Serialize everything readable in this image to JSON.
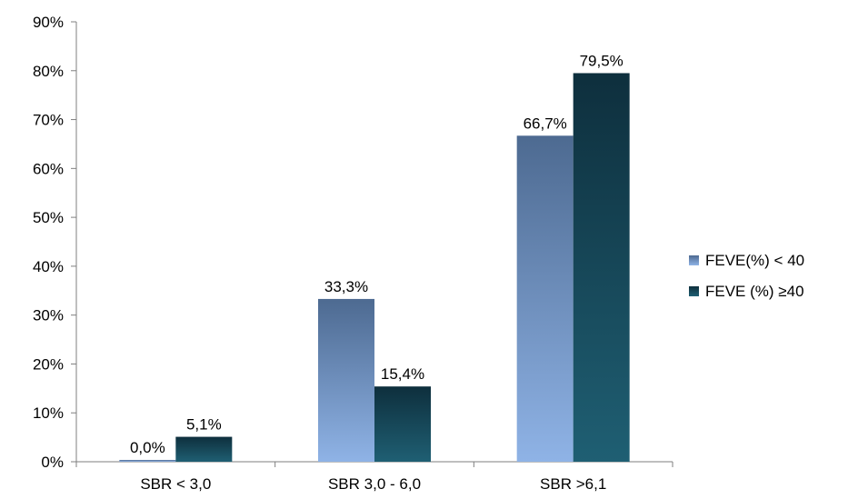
{
  "chart_data": {
    "type": "bar",
    "title": "",
    "xlabel": "",
    "ylabel": "",
    "categories": [
      "SBR < 3,0",
      "SBR 3,0 - 6,0",
      "SBR >6,1"
    ],
    "series": [
      {
        "name": "FEVE(%) < 40",
        "values": [
          0.0,
          33.3,
          66.7
        ],
        "labels": [
          "0,0%",
          "33,3%",
          "66,7%"
        ],
        "color_top": "#4d6a91",
        "color_bottom": "#8fb3e6"
      },
      {
        "name": "FEVE (%) ≥40",
        "values": [
          5.1,
          15.4,
          79.5
        ],
        "labels": [
          "5,1%",
          "15,4%",
          "79,5%"
        ],
        "color_top": "#0e2f3d",
        "color_bottom": "#1f5f73"
      }
    ],
    "ylim": [
      0,
      90
    ],
    "yticks": [
      0,
      10,
      20,
      30,
      40,
      50,
      60,
      70,
      80,
      90
    ],
    "ytick_labels": [
      "0%",
      "10%",
      "20%",
      "30%",
      "40%",
      "50%",
      "60%",
      "70%",
      "80%",
      "90%"
    ],
    "grid": false,
    "legend_position": "right"
  }
}
